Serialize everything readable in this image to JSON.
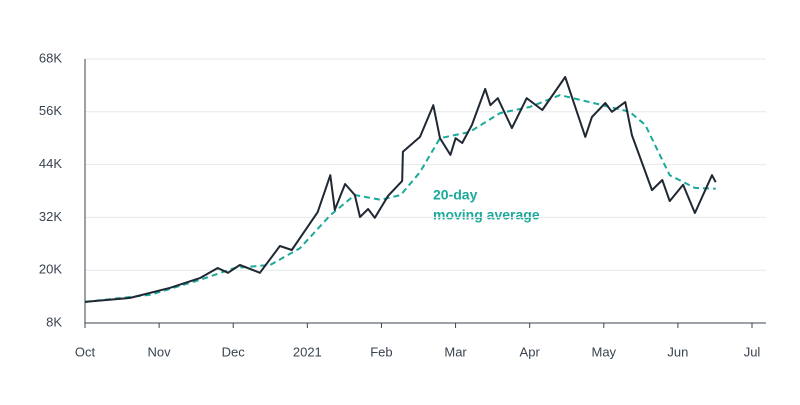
{
  "chart_data": {
    "type": "line",
    "annotation": [
      "20-day",
      "moving average"
    ],
    "xlim": [
      0,
      9
    ],
    "xticks": [
      {
        "value": 0,
        "label": "Oct"
      },
      {
        "value": 1,
        "label": "Nov"
      },
      {
        "value": 2,
        "label": "Dec"
      },
      {
        "value": 3,
        "label": "2021"
      },
      {
        "value": 4,
        "label": "Feb"
      },
      {
        "value": 5,
        "label": "Mar"
      },
      {
        "value": 6,
        "label": "Apr"
      },
      {
        "value": 7,
        "label": "May"
      },
      {
        "value": 8,
        "label": "Jun"
      },
      {
        "value": 9,
        "label": "Jul"
      }
    ],
    "ylim": [
      8,
      68
    ],
    "yticks": [
      {
        "value": 8,
        "label": "8K"
      },
      {
        "value": 20,
        "label": "20K"
      },
      {
        "value": 32,
        "label": "32K"
      },
      {
        "value": 44,
        "label": "44K"
      },
      {
        "value": 56,
        "label": "56K"
      },
      {
        "value": 68,
        "label": "68K"
      }
    ],
    "grid": true,
    "series": [
      {
        "color": "#1f2833",
        "dashed": false,
        "x": [
          0,
          0.61,
          1.15,
          1.55,
          1.79,
          1.93,
          2.09,
          2.36,
          2.63,
          2.79,
          3.14,
          3.31,
          3.37,
          3.51,
          3.64,
          3.71,
          3.82,
          3.91,
          4.09,
          4.28,
          4.29,
          4.52,
          4.7,
          4.79,
          4.93,
          5.0,
          5.09,
          5.22,
          5.4,
          5.47,
          5.57,
          5.76,
          5.96,
          6.17,
          6.48,
          6.75,
          6.84,
          7.02,
          7.11,
          7.29,
          7.38,
          7.65,
          7.79,
          7.89,
          8.07,
          8.23,
          8.46,
          8.51
        ],
        "values": [
          12.8,
          13.7,
          16,
          18.2,
          20.5,
          19.4,
          21.2,
          19.4,
          25.5,
          24.6,
          33.2,
          41.6,
          33.7,
          39.6,
          37.1,
          32.1,
          33.9,
          31.9,
          36.9,
          40.3,
          46.9,
          50.3,
          57.5,
          50,
          46.2,
          50,
          48.9,
          53,
          61.2,
          57.5,
          59.1,
          52.3,
          59.1,
          56.4,
          63.9,
          50.3,
          54.8,
          58,
          56,
          58.2,
          50.7,
          38.2,
          40.5,
          35.7,
          39.4,
          33,
          41.6,
          40
        ]
      },
      {
        "color": "#1aa99a",
        "dashed": true,
        "x": [
          0,
          0.88,
          1.55,
          2.02,
          2.5,
          2.9,
          3.31,
          3.64,
          3.99,
          4.26,
          4.52,
          4.79,
          5.19,
          5.6,
          6.0,
          6.41,
          6.81,
          7.35,
          7.56,
          7.89,
          8.23,
          8.51
        ],
        "values": [
          12.8,
          14.4,
          17.8,
          20.5,
          21.2,
          25,
          32.5,
          37.1,
          36,
          37.1,
          42.3,
          50,
          51.4,
          55.7,
          57.1,
          59.8,
          58.2,
          56,
          53,
          41.6,
          38.7,
          38.5
        ]
      }
    ]
  }
}
